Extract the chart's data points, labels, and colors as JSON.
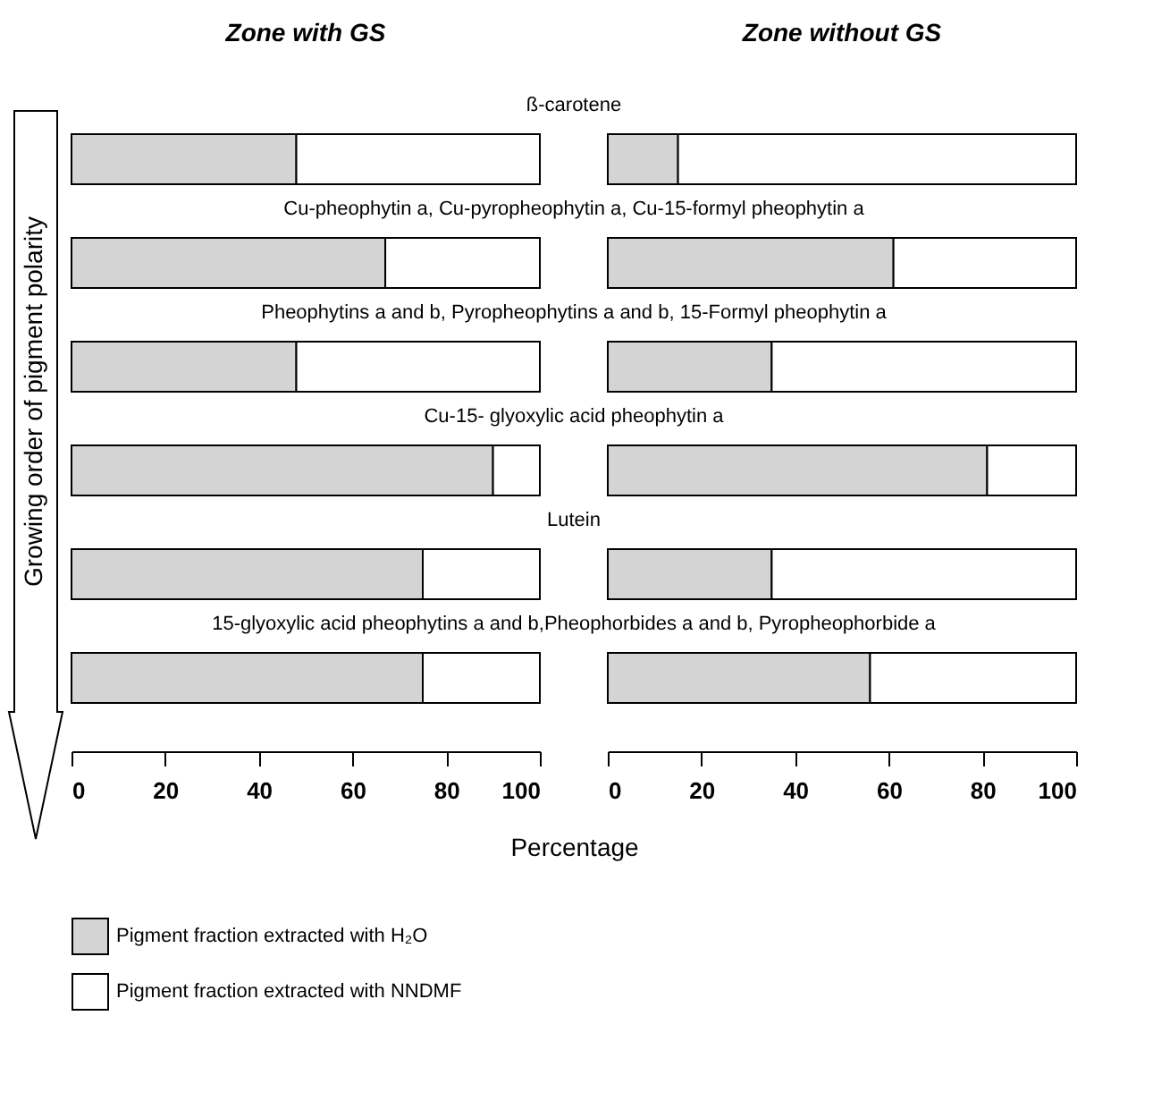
{
  "chart_data": [
    {
      "type": "bar",
      "orientation": "horizontal",
      "stacked": true,
      "title": "Zone with GS",
      "xlabel": "Percentage",
      "ylabel": "Growing order of pigment polarity",
      "legend": "bottom left",
      "categories": [
        "ß-carotene",
        "Cu-pheophytin a, Cu-pyropheophytin a, Cu-15-formyl pheophytin a",
        "Pheophytins a and b, Pyropheophytins a and b, 15-Formyl pheophytin a",
        "Cu-15- glyoxylic acid pheophytin a",
        "Lutein",
        "15-glyoxylic acid pheophytins a and b,Pheophorbides a and b, Pyropheophorbide a"
      ],
      "series": [
        {
          "name": "Pigment fraction extracted with H₂O",
          "color": "#d4d4d4",
          "values": [
            48,
            67,
            48,
            90,
            75,
            75
          ]
        },
        {
          "name": "Pigment fraction extracted with NNDMF",
          "color": "#ffffff",
          "values": [
            52,
            33,
            52,
            10,
            25,
            25
          ]
        }
      ],
      "xlim": [
        0,
        100
      ],
      "xticks": [
        0,
        20,
        40,
        60,
        80,
        100
      ]
    },
    {
      "type": "bar",
      "orientation": "horizontal",
      "stacked": true,
      "title": "Zone without GS",
      "tick_labels": "x",
      "categories": [
        null,
        null,
        null,
        null,
        null,
        null
      ],
      "series": [
        {
          "color": "#d4d4d4",
          "values": [
            15,
            61,
            35,
            81,
            35,
            56
          ]
        },
        {
          "color": "#ffffff",
          "values": [
            85,
            39,
            65,
            19,
            65,
            44
          ]
        }
      ],
      "xlim": [
        0,
        100
      ],
      "xticks": [
        0,
        20,
        40,
        60,
        80,
        100
      ]
    }
  ]
}
